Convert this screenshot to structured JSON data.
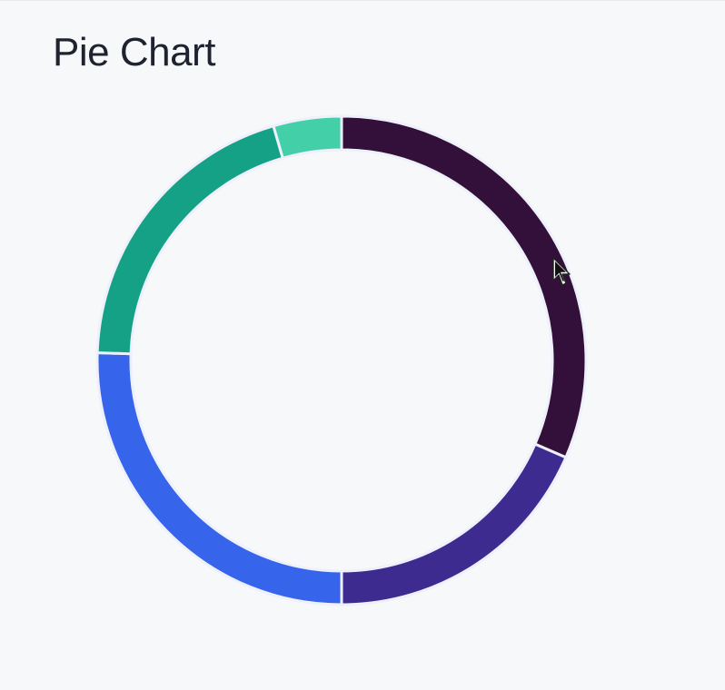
{
  "page": {
    "title": "Pie Chart"
  },
  "chart_data": {
    "type": "pie",
    "style": "donut",
    "start_angle_deg": 0,
    "direction": "clockwise",
    "slices": [
      {
        "value": 31.5,
        "color": "#331039"
      },
      {
        "value": 18.5,
        "color": "#3e2b8f"
      },
      {
        "value": 25.5,
        "color": "#3664ea"
      },
      {
        "value": 20.0,
        "color": "#15a185"
      },
      {
        "value": 4.5,
        "color": "#43cfa8"
      }
    ],
    "separator_color": "#eef0fb",
    "legend": "none"
  }
}
